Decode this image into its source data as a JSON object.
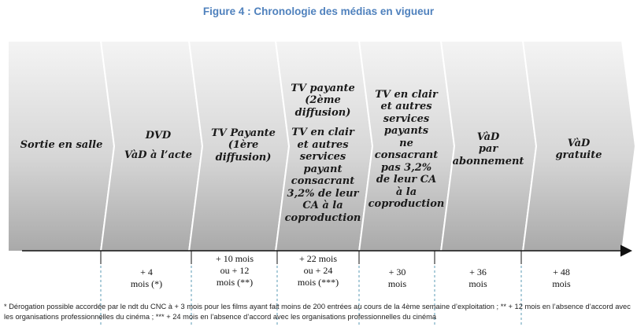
{
  "figure_title": "Figure 4 : Chronologie des médias en vigueur",
  "stages": [
    {
      "lines": [
        "Sortie en salle"
      ]
    },
    {
      "lines": [
        "DVD",
        "",
        "VàD à l’acte"
      ]
    },
    {
      "lines": [
        "TV Payante",
        "(1ère",
        "diffusion)"
      ]
    },
    {
      "lines": [
        "TV payante",
        "(2ème",
        "diffusion)",
        "",
        "TV en clair",
        "et autres",
        "services",
        "payant",
        "consacrant",
        "3,2% de leur",
        "CA à la",
        "coproduction"
      ]
    },
    {
      "lines": [
        "TV en clair",
        "et autres",
        "services",
        "payants",
        "ne",
        "consacrant",
        "pas 3,2%",
        "de leur CA",
        "à la",
        "coproduction"
      ]
    },
    {
      "lines": [
        "VàD",
        "par",
        "abonnement"
      ]
    },
    {
      "lines": [
        "VàD",
        "gratuite"
      ]
    }
  ],
  "delays": [
    {
      "lines": [
        "+ 4",
        "mois (*)"
      ]
    },
    {
      "lines": [
        "+ 10 mois",
        "ou + 12",
        "mois (**)"
      ]
    },
    {
      "lines": [
        "+ 22 mois",
        "ou + 24",
        "mois (***)"
      ]
    },
    {
      "lines": [
        "+ 30",
        "mois"
      ]
    },
    {
      "lines": [
        "+ 36",
        "mois"
      ]
    },
    {
      "lines": [
        "+ 48",
        "mois"
      ]
    }
  ],
  "footnote": "* Dérogation possible accordée par le ndt du CNC à + 3 mois pour les films ayant fait moins de 200 entrées au cours de la 4ème semaine d’exploitation ; ** + 12 mois en l’absence d’accord avec les organisations professionnelles du cinéma ; *** + 24 mois en l’absence d’accord avec les organisations professionnelles du cinéma",
  "colors": {
    "title": "#4f81bd",
    "dashed_guides": "#5b9bb5",
    "chevron_gradient": [
      "#f4f4f4",
      "#d6d6d6",
      "#a9a9a9"
    ]
  }
}
